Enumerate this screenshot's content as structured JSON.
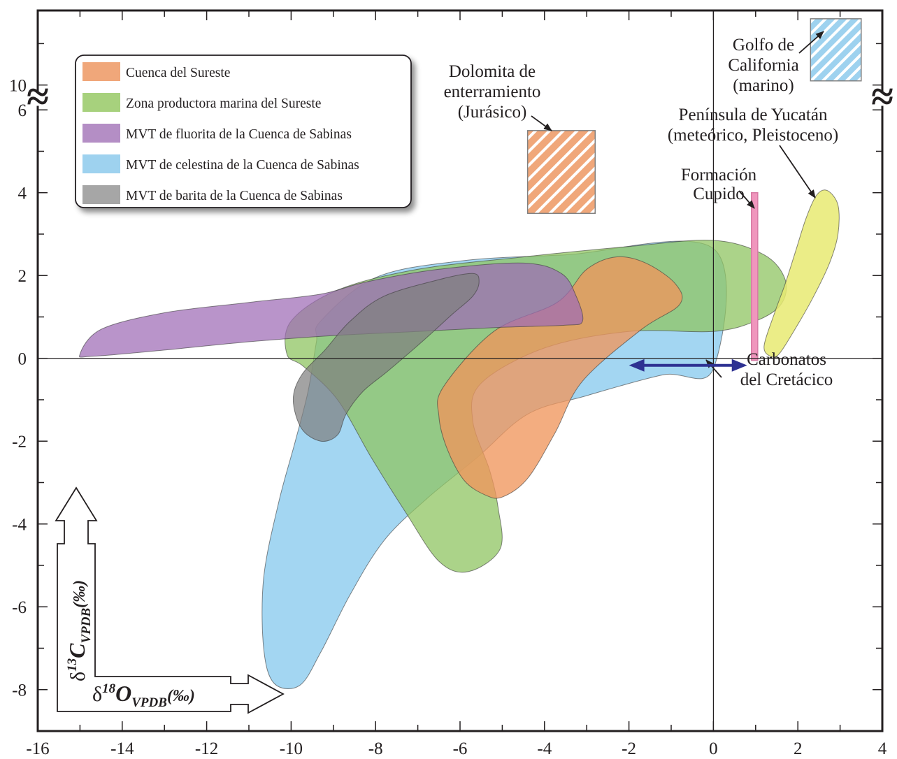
{
  "chart_data": {
    "type": "area",
    "title": "",
    "xlabel": "δ18O VPDB (‰)",
    "ylabel": "δ13C VPDB (‰)",
    "axis_labels": {
      "x_base": "δ",
      "x_sup": "18",
      "x_main": "O",
      "x_sub": "VPDB",
      "x_unit": "(‰)",
      "y_base": "δ",
      "y_sup": "13",
      "y_main": "C",
      "y_sub": "VPDB",
      "y_unit": "(‰)"
    },
    "xlim": [
      -16,
      4
    ],
    "ylim": [
      -9,
      11.8
    ],
    "axis_break": {
      "y_from": 6.6,
      "y_to": 10,
      "symbol": "≈"
    },
    "x_ticks": [
      -16,
      -14,
      -12,
      -10,
      -8,
      -6,
      -4,
      -2,
      0,
      2,
      4
    ],
    "x_tick_labels": [
      "-16",
      "-14",
      "-12",
      "-10",
      "-8",
      "-6",
      "-4",
      "-2",
      "0",
      "2",
      "4"
    ],
    "y_ticks": [
      -8,
      -6,
      -4,
      -2,
      0,
      2,
      4,
      6,
      10
    ],
    "y_tick_labels": [
      "-8",
      "-6",
      "-4",
      "-2",
      "0",
      "2",
      "4",
      "6",
      "10"
    ],
    "grid": false,
    "reference_lines": {
      "x0": true,
      "y0": true
    },
    "legend": {
      "placement": "top-left",
      "entries": [
        {
          "label": "Cuenca del Sureste",
          "color": "#f0a77a"
        },
        {
          "label": "Zona productora marina del Sureste",
          "color": "#a7d17d"
        },
        {
          "label": "MVT de fluorita de la Cuenca de Sabinas",
          "color": "#b48ec5"
        },
        {
          "label": "MVT de celestina de la Cuenca de Sabinas",
          "color": "#9ed2ef"
        },
        {
          "label": "MVT de barita de la Cuenca de Sabinas",
          "color": "#a6a6a6"
        }
      ]
    },
    "series": [
      {
        "name": "MVT de celestina de la Cuenca de Sabinas",
        "color": "#89cbee",
        "opacity": 0.78,
        "points": [
          [
            -9.3,
            0.9
          ],
          [
            -8.0,
            1.95
          ],
          [
            -6.0,
            2.35
          ],
          [
            -3.5,
            2.5
          ],
          [
            0.0,
            2.65
          ],
          [
            0.0,
            -0.25
          ],
          [
            -1.2,
            -0.4
          ],
          [
            -3.0,
            -0.9
          ],
          [
            -4.4,
            -1.35
          ],
          [
            -5.6,
            -2.4
          ],
          [
            -6.8,
            -3.4
          ],
          [
            -7.8,
            -4.4
          ],
          [
            -8.6,
            -5.7
          ],
          [
            -9.3,
            -7.1
          ],
          [
            -9.8,
            -7.9
          ],
          [
            -10.4,
            -7.85
          ],
          [
            -10.65,
            -7.0
          ],
          [
            -10.65,
            -5.3
          ],
          [
            -10.3,
            -3.5
          ],
          [
            -9.9,
            -2.0
          ],
          [
            -9.6,
            -0.8
          ],
          [
            -9.4,
            0.4
          ]
        ]
      },
      {
        "name": "Zona productora marina del Sureste",
        "color": "#8fc462",
        "opacity": 0.75,
        "points": [
          [
            -10.1,
            0.1
          ],
          [
            -10.0,
            0.9
          ],
          [
            -8.9,
            1.65
          ],
          [
            -7.0,
            2.15
          ],
          [
            -4.5,
            2.45
          ],
          [
            -2.0,
            2.7
          ],
          [
            0.0,
            2.85
          ],
          [
            1.2,
            2.5
          ],
          [
            1.7,
            1.9
          ],
          [
            1.6,
            1.3
          ],
          [
            1.0,
            0.9
          ],
          [
            0.0,
            0.65
          ],
          [
            -2.0,
            0.65
          ],
          [
            -4.0,
            0.25
          ],
          [
            -5.5,
            -0.6
          ],
          [
            -5.7,
            -1.5
          ],
          [
            -5.3,
            -2.7
          ],
          [
            -5.1,
            -3.6
          ],
          [
            -5.05,
            -4.6
          ],
          [
            -5.8,
            -5.15
          ],
          [
            -6.5,
            -4.9
          ],
          [
            -7.3,
            -3.7
          ],
          [
            -8.1,
            -2.4
          ],
          [
            -8.9,
            -1.0
          ],
          [
            -9.7,
            -0.2
          ]
        ]
      },
      {
        "name": "Cuenca del Sureste",
        "color": "#f0965c",
        "opacity": 0.78,
        "points": [
          [
            -6.4,
            -0.7
          ],
          [
            -5.2,
            0.65
          ],
          [
            -3.7,
            1.35
          ],
          [
            -3.0,
            2.15
          ],
          [
            -2.3,
            2.45
          ],
          [
            -1.6,
            2.3
          ],
          [
            -0.9,
            1.8
          ],
          [
            -0.8,
            1.3
          ],
          [
            -1.7,
            0.7
          ],
          [
            -3.1,
            -0.55
          ],
          [
            -3.75,
            -1.8
          ],
          [
            -4.4,
            -2.9
          ],
          [
            -5.0,
            -3.35
          ],
          [
            -5.4,
            -3.3
          ],
          [
            -5.9,
            -2.95
          ],
          [
            -6.3,
            -2.2
          ],
          [
            -6.5,
            -1.4
          ]
        ]
      },
      {
        "name": "MVT de fluorita de la Cuenca de Sabinas",
        "color": "#9e6bb6",
        "opacity": 0.72,
        "points": [
          [
            -15.0,
            0.1
          ],
          [
            -14.5,
            0.7
          ],
          [
            -13.0,
            1.1
          ],
          [
            -11.0,
            1.35
          ],
          [
            -9.3,
            1.55
          ],
          [
            -8.2,
            1.85
          ],
          [
            -6.5,
            2.15
          ],
          [
            -4.5,
            2.3
          ],
          [
            -3.6,
            2.05
          ],
          [
            -3.25,
            1.5
          ],
          [
            -3.1,
            0.9
          ],
          [
            -3.5,
            0.8
          ],
          [
            -5.0,
            0.75
          ],
          [
            -7.0,
            0.65
          ],
          [
            -9.0,
            0.55
          ],
          [
            -11.0,
            0.4
          ],
          [
            -13.0,
            0.2
          ],
          [
            -14.7,
            0.05
          ]
        ]
      },
      {
        "name": "MVT de barita de la Cuenca de Sabinas",
        "color": "#808080",
        "opacity": 0.72,
        "points": [
          [
            -9.2,
            0.2
          ],
          [
            -8.6,
            0.9
          ],
          [
            -7.8,
            1.5
          ],
          [
            -6.5,
            1.9
          ],
          [
            -5.7,
            2.05
          ],
          [
            -5.55,
            1.85
          ],
          [
            -5.7,
            1.5
          ],
          [
            -6.2,
            1.05
          ],
          [
            -6.9,
            0.4
          ],
          [
            -7.7,
            -0.3
          ],
          [
            -8.3,
            -0.8
          ],
          [
            -8.7,
            -1.35
          ],
          [
            -8.9,
            -1.85
          ],
          [
            -9.3,
            -2.0
          ],
          [
            -9.75,
            -1.7
          ],
          [
            -9.95,
            -1.0
          ],
          [
            -9.75,
            -0.4
          ]
        ]
      },
      {
        "name": "",
        "color": "#e8ea72",
        "opacity": 0.85,
        "points": [
          [
            1.35,
            0.05
          ],
          [
            1.2,
            0.3
          ],
          [
            1.45,
            1.1
          ],
          [
            1.7,
            1.8
          ],
          [
            1.95,
            2.6
          ],
          [
            2.2,
            3.4
          ],
          [
            2.45,
            3.95
          ],
          [
            2.7,
            4.05
          ],
          [
            2.95,
            3.7
          ],
          [
            2.95,
            3.0
          ],
          [
            2.75,
            2.3
          ],
          [
            2.35,
            1.45
          ],
          [
            1.9,
            0.65
          ],
          [
            1.55,
            0.1
          ]
        ]
      }
    ],
    "boxes": [
      {
        "label": "Dolomita de enterramiento (Jurásico)",
        "color": "#f0a77a",
        "x": [
          -4.4,
          -2.8
        ],
        "y": [
          3.5,
          5.5
        ]
      },
      {
        "label": "Golfo de California (marino)",
        "color": "#9ed2ef",
        "x": [
          2.3,
          3.5
        ],
        "y": [
          10.1,
          11.6
        ]
      },
      {
        "label": "Formación Cupido",
        "color": "#f096bd",
        "x": [
          0.9,
          1.05
        ],
        "y": [
          -0.05,
          4.0
        ]
      }
    ],
    "double_arrow": {
      "label": "Carbonatos del Cretácico",
      "x": [
        -2.0,
        0.8
      ],
      "y": -0.17,
      "color": "#2e3192"
    },
    "annotations": {
      "dolomita": [
        "Dolomita de",
        "enterramiento",
        "(Jurásico)"
      ],
      "golfo": [
        "Golfo de",
        "California",
        "(marino)"
      ],
      "yucatan": [
        "Península de Yucatán",
        "(meteórico, Pleistoceno)"
      ],
      "cupido": [
        "Formación",
        "Cupido"
      ],
      "carbonatos": [
        "Carbonatos",
        "del Cretácico"
      ]
    }
  }
}
